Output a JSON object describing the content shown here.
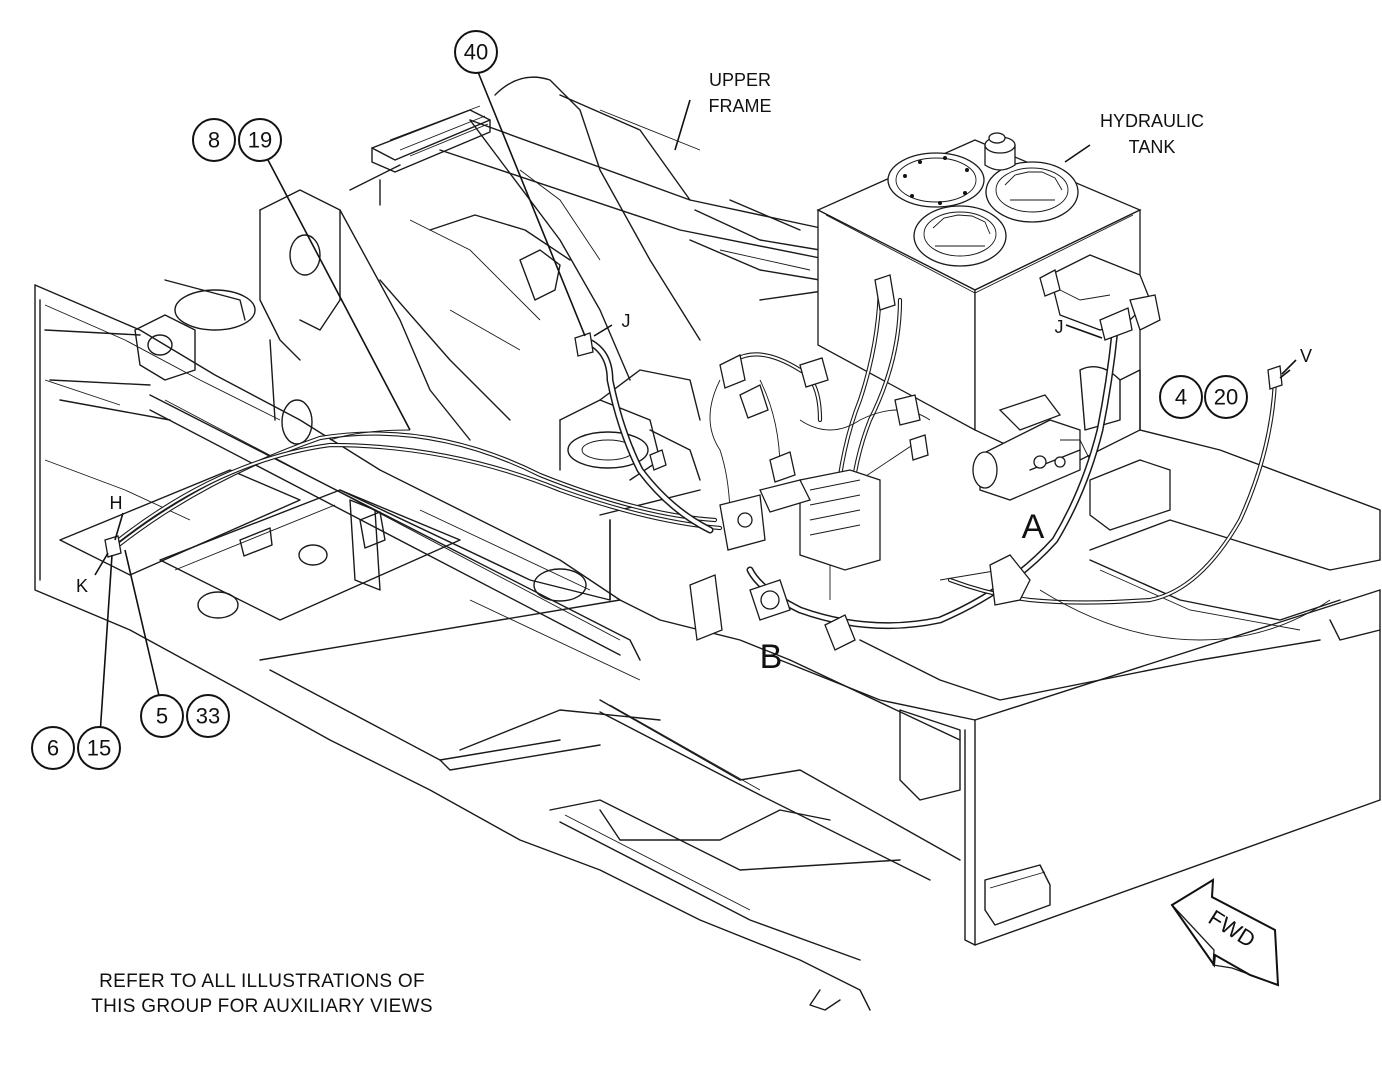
{
  "callouts": {
    "c40": "40",
    "c8": "8",
    "c19": "19",
    "c4": "4",
    "c20": "20",
    "c5": "5",
    "c33": "33",
    "c6": "6",
    "c15": "15"
  },
  "labels": {
    "upper_frame_1": "UPPER",
    "upper_frame_2": "FRAME",
    "hydraulic_tank_1": "HYDRAULIC",
    "hydraulic_tank_2": "TANK",
    "view_a": "A",
    "view_b": "B",
    "point_j_left": "J",
    "point_j_right": "J",
    "point_v": "V",
    "point_h": "H",
    "point_k": "K"
  },
  "note": {
    "line1": "REFER TO ALL ILLUSTRATIONS OF",
    "line2": "THIS GROUP FOR AUXILIARY VIEWS"
  },
  "direction_arrow": "FWD"
}
